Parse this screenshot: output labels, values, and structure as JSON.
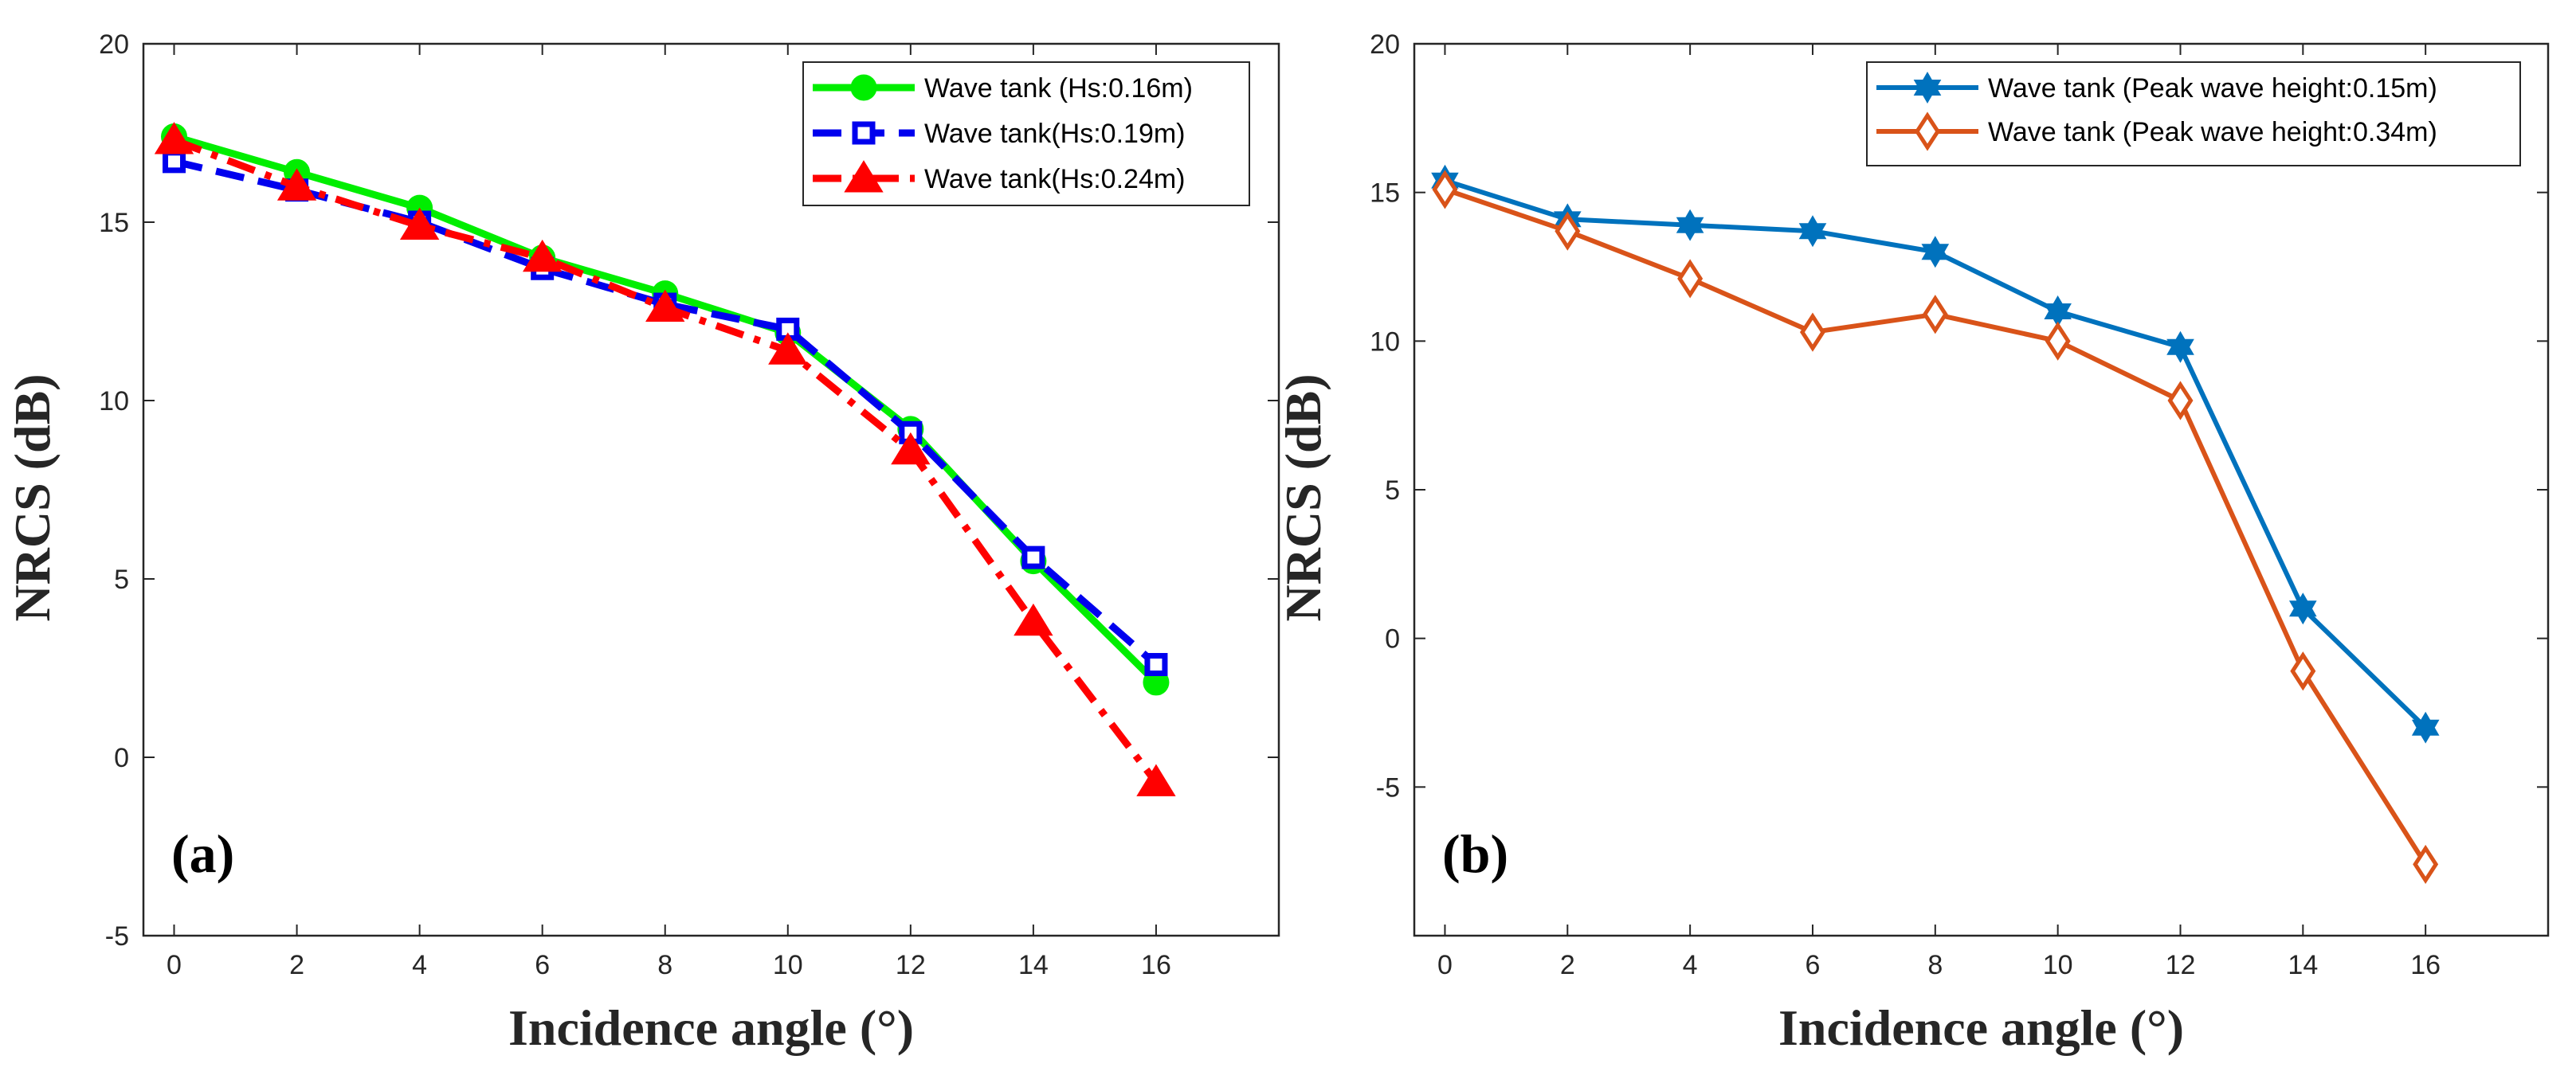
{
  "chart_data": [
    {
      "type": "line",
      "panel_label": "(a)",
      "xlabel": "Incidence angle (°)",
      "ylabel": "NRCS (dB)",
      "xlim": [
        -0.5,
        18
      ],
      "ylim": [
        -5,
        20
      ],
      "xticks": [
        0,
        2,
        4,
        6,
        8,
        10,
        12,
        14,
        16
      ],
      "yticks": [
        -5,
        0,
        5,
        10,
        15,
        20
      ],
      "legend_position": "top-right",
      "series": [
        {
          "name": "Wave tank (Hs:0.16m)",
          "color": "#00ee00",
          "dash": "solid",
          "marker": "circle",
          "x": [
            0,
            2,
            4,
            6,
            8,
            10,
            12,
            14,
            16
          ],
          "values": [
            17.4,
            16.4,
            15.4,
            14.0,
            13.0,
            11.9,
            9.2,
            5.5,
            2.1
          ]
        },
        {
          "name": "Wave tank(Hs:0.19m)",
          "color": "#0000ee",
          "dash": "dashed",
          "marker": "square",
          "x": [
            0,
            2,
            4,
            6,
            8,
            10,
            12,
            14,
            16
          ],
          "values": [
            16.7,
            15.9,
            15.0,
            13.7,
            12.7,
            12.0,
            9.1,
            5.6,
            2.6
          ]
        },
        {
          "name": "Wave tank(Hs:0.24m)",
          "color": "#ff0000",
          "dash": "dashdot",
          "marker": "triangle",
          "x": [
            0,
            2,
            4,
            6,
            8,
            10,
            12,
            14,
            16
          ],
          "values": [
            17.3,
            16.0,
            14.9,
            14.0,
            12.6,
            11.4,
            8.6,
            3.8,
            -0.7
          ]
        }
      ]
    },
    {
      "type": "line",
      "panel_label": "(b)",
      "xlabel": "Incidence angle (°)",
      "ylabel": "NRCS (dB)",
      "xlim": [
        -0.5,
        18
      ],
      "ylim": [
        -10,
        20
      ],
      "xticks": [
        0,
        2,
        4,
        6,
        8,
        10,
        12,
        14,
        16
      ],
      "yticks": [
        -5,
        0,
        5,
        10,
        15,
        20
      ],
      "legend_position": "top-right",
      "series": [
        {
          "name": "Wave tank (Peak wave height:0.15m)",
          "color": "#0072bd",
          "dash": "solid",
          "marker": "hexagram",
          "x": [
            0,
            2,
            4,
            6,
            8,
            10,
            12,
            14,
            16
          ],
          "values": [
            15.4,
            14.1,
            13.9,
            13.7,
            13.0,
            11.0,
            9.8,
            1.0,
            -3.0
          ]
        },
        {
          "name": "Wave tank (Peak wave height:0.34m)",
          "color": "#d95319",
          "dash": "solid",
          "marker": "diamond",
          "x": [
            0,
            2,
            4,
            6,
            8,
            10,
            12,
            14,
            16
          ],
          "values": [
            15.1,
            13.7,
            12.1,
            10.3,
            10.9,
            10.0,
            8.0,
            -1.1,
            -7.6
          ]
        }
      ]
    }
  ]
}
